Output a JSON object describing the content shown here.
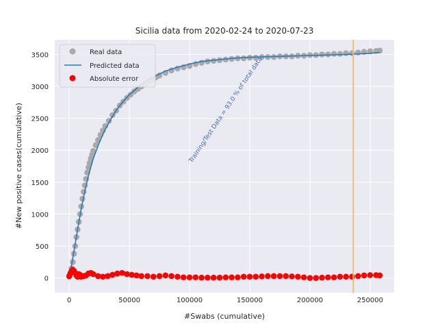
{
  "chart_data": {
    "type": "scatter",
    "title": "Sicilia data  from 2020-02-24 to 2020-07-23",
    "xlabel": "#Swabs (cumulative)",
    "ylabel": "#New positive cases(cumulative)",
    "xlim": [
      -12000,
      270000
    ],
    "ylim": [
      -230,
      3730
    ],
    "xticks": [
      0,
      50000,
      100000,
      150000,
      200000,
      250000
    ],
    "yticks": [
      0,
      500,
      1000,
      1500,
      2000,
      2500,
      3000,
      3500
    ],
    "xtick_labels": [
      "0",
      "50000",
      "100000",
      "150000",
      "200000",
      "250000"
    ],
    "ytick_labels": [
      "0",
      "500",
      "1000",
      "1500",
      "2000",
      "2500",
      "3000",
      "3500"
    ],
    "grid": true,
    "legend_position": "top-left",
    "series": [
      {
        "name": "Real data",
        "kind": "scatter",
        "color": "#a9a9a9",
        "x": [
          0,
          1000,
          2000,
          3000,
          4000,
          5000,
          6000,
          7000,
          8000,
          9000,
          10000,
          11000,
          12000,
          13000,
          14000,
          15000,
          16000,
          17000,
          18000,
          19000,
          20000,
          22000,
          24000,
          26000,
          28000,
          30000,
          33000,
          36000,
          39000,
          42000,
          45000,
          48000,
          51000,
          54000,
          57000,
          60000,
          63000,
          66000,
          69000,
          72000,
          75000,
          80000,
          85000,
          90000,
          95000,
          100000,
          105000,
          110000,
          115000,
          120000,
          125000,
          130000,
          135000,
          140000,
          145000,
          150000,
          155000,
          160000,
          165000,
          170000,
          175000,
          180000,
          185000,
          190000,
          195000,
          200000,
          205000,
          210000,
          215000,
          220000,
          225000,
          230000,
          235000,
          240000,
          245000,
          250000,
          255000,
          258000
        ],
        "y": [
          20,
          80,
          150,
          250,
          380,
          500,
          640,
          760,
          880,
          1000,
          1120,
          1240,
          1350,
          1450,
          1550,
          1650,
          1730,
          1800,
          1870,
          1930,
          1990,
          2080,
          2160,
          2240,
          2310,
          2380,
          2460,
          2550,
          2620,
          2700,
          2760,
          2820,
          2870,
          2920,
          2960,
          3000,
          3040,
          3080,
          3110,
          3140,
          3170,
          3210,
          3250,
          3280,
          3300,
          3320,
          3350,
          3370,
          3390,
          3400,
          3410,
          3420,
          3430,
          3440,
          3440,
          3450,
          3450,
          3460,
          3460,
          3460,
          3470,
          3470,
          3470,
          3480,
          3480,
          3490,
          3490,
          3500,
          3500,
          3510,
          3510,
          3520,
          3520,
          3530,
          3540,
          3550,
          3555,
          3560
        ]
      },
      {
        "name": "Predicted data",
        "kind": "line",
        "color": "#2e78b7",
        "x": [
          0,
          2000,
          4000,
          6000,
          8000,
          10000,
          12000,
          14000,
          16000,
          18000,
          20000,
          25000,
          30000,
          35000,
          40000,
          45000,
          50000,
          60000,
          70000,
          80000,
          90000,
          100000,
          110000,
          120000,
          130000,
          140000,
          150000,
          160000,
          170000,
          180000,
          190000,
          200000,
          210000,
          220000,
          230000,
          240000,
          250000,
          258000
        ],
        "y": [
          30,
          200,
          420,
          650,
          870,
          1080,
          1270,
          1440,
          1600,
          1740,
          1870,
          2120,
          2330,
          2500,
          2650,
          2770,
          2870,
          3030,
          3150,
          3240,
          3300,
          3350,
          3390,
          3410,
          3430,
          3445,
          3455,
          3462,
          3468,
          3473,
          3478,
          3483,
          3488,
          3494,
          3500,
          3508,
          3518,
          3530
        ]
      },
      {
        "name": "Absolute error",
        "kind": "scatter",
        "color": "#ff0000",
        "x": [
          0,
          1000,
          2000,
          3000,
          4000,
          5000,
          6000,
          7000,
          8000,
          9000,
          10000,
          12000,
          14000,
          16000,
          18000,
          20000,
          24000,
          28000,
          32000,
          36000,
          40000,
          44000,
          48000,
          52000,
          56000,
          60000,
          65000,
          70000,
          75000,
          80000,
          85000,
          90000,
          95000,
          100000,
          105000,
          110000,
          115000,
          120000,
          125000,
          130000,
          135000,
          140000,
          145000,
          150000,
          155000,
          160000,
          165000,
          170000,
          175000,
          180000,
          185000,
          190000,
          195000,
          200000,
          205000,
          210000,
          215000,
          220000,
          225000,
          230000,
          235000,
          240000,
          245000,
          250000,
          255000,
          258000
        ],
        "y": [
          30,
          70,
          110,
          130,
          110,
          80,
          40,
          20,
          60,
          50,
          20,
          30,
          40,
          70,
          80,
          60,
          30,
          20,
          30,
          50,
          70,
          80,
          60,
          50,
          40,
          30,
          30,
          20,
          30,
          40,
          30,
          20,
          10,
          10,
          10,
          5,
          5,
          5,
          5,
          10,
          10,
          10,
          20,
          20,
          20,
          25,
          30,
          30,
          30,
          30,
          25,
          20,
          10,
          0,
          0,
          5,
          10,
          10,
          20,
          20,
          20,
          30,
          40,
          45,
          45,
          40
        ]
      }
    ],
    "vline": {
      "x": 236000,
      "color": "#efbf6b"
    },
    "annotation": {
      "text": "Training/Test Data = 93.0 % of total data",
      "x": 102000,
      "y": 1800,
      "angle": -56,
      "color": "#4c6aa6"
    }
  }
}
